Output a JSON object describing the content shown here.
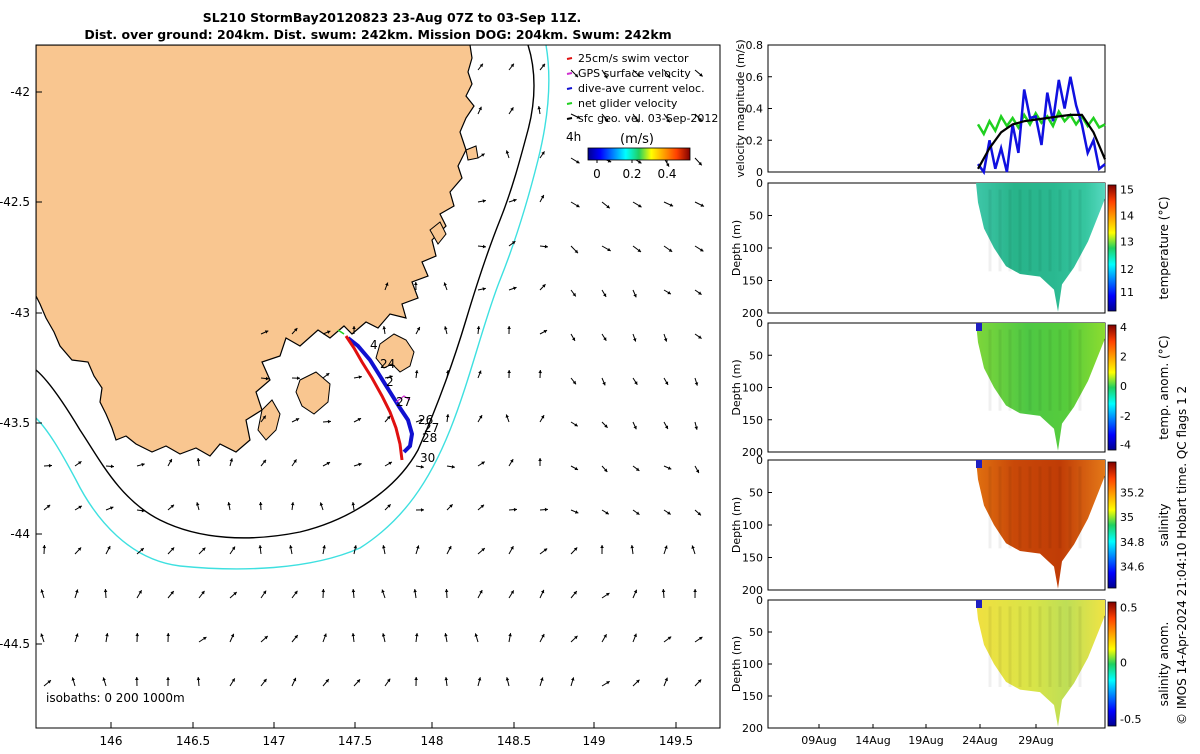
{
  "header": {
    "title_line1": "SL210 StormBay20120823 23-Aug 07Z to 03-Sep 11Z.",
    "title_line2": "Dist. over ground: 204km. Dist. swum: 242km. Mission DOG: 204km. Swum: 242km"
  },
  "map": {
    "legend": [
      {
        "label": "25cm/s swim vector",
        "color": "#e01010"
      },
      {
        "label": "GPS surface velocity",
        "color": "#d030d0"
      },
      {
        "label": "dive-ave current veloc.",
        "color": "#1010d0"
      },
      {
        "label": "net glider velocity",
        "color": "#20d020"
      },
      {
        "label": "sfc geo. vel. 03-Sep-2012",
        "color": "#000000"
      }
    ],
    "colorbar_unit": "(m/s)",
    "colorbar_ticks": [
      "0",
      "0.2",
      "0.4"
    ],
    "hour_label": "4h",
    "isobaths_label": "isobaths: 0   200  1000m",
    "xticks": [
      "146",
      "146.5",
      "147",
      "147.5",
      "148",
      "148.5",
      "149",
      "149.5"
    ],
    "yticks": [
      "-42",
      "-42.5",
      "-43",
      "-43.5",
      "-44",
      "-44.5"
    ],
    "track_day_labels": [
      "4",
      "24",
      "2",
      "27",
      "26",
      "27",
      "28",
      "30"
    ]
  },
  "panels": {
    "time_ticks": [
      "09Aug",
      "14Aug",
      "19Aug",
      "24Aug",
      "29Aug"
    ],
    "depth_label": "Depth (m)",
    "depth_ticks": [
      "0",
      "50",
      "100",
      "150",
      "200"
    ],
    "velocity_label": "velocity magnitude (m/s)",
    "velocity_ticks": [
      "0",
      "0.2",
      "0.4",
      "0.6",
      "0.8"
    ],
    "temperature": {
      "label": "temperature (°C)",
      "ticks": [
        "15",
        "14",
        "13",
        "12",
        "11"
      ]
    },
    "temp_anom": {
      "label": "temp. anom. (°C)",
      "ticks": [
        "4",
        "2",
        "0",
        "-2",
        "-4"
      ]
    },
    "salinity": {
      "label": "salinity",
      "ticks": [
        "35.2",
        "35",
        "34.8",
        "34.6"
      ]
    },
    "sal_anom": {
      "label": "salinity anom.",
      "ticks": [
        "0.5",
        "0",
        "-0.5"
      ]
    },
    "footer": "© IMOS 14-Apr-2024 21:04:10 Hobart time. QC flags 1  2"
  },
  "chart_data": [
    {
      "type": "scatter",
      "title": "SL210 StormBay20120823 23-Aug 07Z to 03-Sep 11Z.",
      "xlim": [
        145.52,
        149.83
      ],
      "ylim": [
        -44.85,
        -41.8
      ],
      "grid": false,
      "legend_placement": "top-right",
      "series": [
        {
          "name": "dive-ave current veloc.",
          "x": [
            147.45,
            147.55,
            147.62,
            147.7,
            147.76,
            147.8,
            147.83,
            147.86,
            147.84,
            147.8
          ],
          "y": [
            -43.1,
            -43.16,
            -43.23,
            -43.33,
            -43.4,
            -43.46,
            -43.52,
            -43.56,
            -43.61,
            -43.64
          ]
        },
        {
          "name": "25cm/s swim vector",
          "x": [
            147.44,
            147.54,
            147.62,
            147.69,
            147.74,
            147.78,
            147.8,
            147.82,
            147.8
          ],
          "y": [
            -43.11,
            -43.17,
            -43.26,
            -43.36,
            -43.45,
            -43.52,
            -43.58,
            -43.63,
            -43.68
          ]
        }
      ]
    },
    {
      "type": "line",
      "ylabel": "velocity magnitude (m/s)",
      "ylim": [
        0,
        0.8
      ],
      "x": [
        "23Aug",
        "24Aug",
        "25Aug",
        "26Aug",
        "27Aug",
        "28Aug",
        "29Aug",
        "30Aug",
        "31Aug",
        "01Sep",
        "02Sep",
        "03Sep"
      ],
      "series": [
        {
          "name": "net glider velocity",
          "values": [
            0.3,
            0.32,
            0.35,
            0.34,
            0.36,
            0.37,
            0.35,
            0.38,
            0.36,
            0.35,
            0.34,
            0.3
          ]
        },
        {
          "name": "dive-ave current veloc.",
          "values": [
            0.05,
            0.2,
            0.15,
            0.3,
            0.52,
            0.35,
            0.5,
            0.58,
            0.6,
            0.3,
            0.2,
            0.05
          ]
        },
        {
          "name": "sfc geo. vel.",
          "values": [
            0.02,
            0.15,
            0.25,
            0.3,
            0.32,
            0.33,
            0.34,
            0.35,
            0.36,
            0.36,
            0.25,
            0.08
          ]
        }
      ]
    },
    {
      "type": "heatmap",
      "ylabel": "Depth (m)",
      "colorbar": "temperature (°C)",
      "clim": [
        10.3,
        15.3
      ],
      "ylim": [
        200,
        0
      ],
      "x": [
        "24Aug",
        "27Aug",
        "30Aug",
        "03Sep"
      ],
      "y": [
        0,
        50,
        100,
        150
      ],
      "values": [
        [
          13.0,
          12.4,
          12.4,
          13.5
        ],
        [
          12.6,
          12.3,
          12.2,
          12.6
        ],
        [
          12.4,
          12.1,
          12.0,
          12.3
        ],
        [
          12.2,
          12.0,
          12.0,
          12.2
        ]
      ]
    },
    {
      "type": "heatmap",
      "ylabel": "Depth (m)",
      "colorbar": "temp. anom. (°C)",
      "clim": [
        -4,
        4
      ],
      "ylim": [
        200,
        0
      ],
      "x": [
        "24Aug",
        "27Aug",
        "30Aug",
        "03Sep"
      ],
      "y": [
        0,
        50,
        100,
        150
      ],
      "values": [
        [
          1.2,
          0.8,
          1.0,
          1.0
        ],
        [
          0.5,
          0.3,
          0.4,
          0.5
        ],
        [
          0.3,
          0.0,
          0.2,
          0.3
        ],
        [
          0.2,
          0.1,
          0.1,
          0.2
        ]
      ]
    },
    {
      "type": "heatmap",
      "ylabel": "Depth (m)",
      "colorbar": "salinity",
      "clim": [
        34.5,
        35.35
      ],
      "ylim": [
        200,
        0
      ],
      "x": [
        "24Aug",
        "27Aug",
        "30Aug",
        "03Sep"
      ],
      "y": [
        0,
        50,
        100,
        150
      ],
      "values": [
        [
          35.15,
          35.3,
          35.3,
          35.15
        ],
        [
          35.2,
          35.3,
          35.3,
          35.2
        ],
        [
          35.18,
          35.28,
          35.28,
          35.2
        ],
        [
          35.15,
          35.25,
          35.25,
          35.18
        ]
      ]
    },
    {
      "type": "heatmap",
      "ylabel": "Depth (m)",
      "colorbar": "salinity anom.",
      "clim": [
        -0.5,
        0.5
      ],
      "ylim": [
        200,
        0
      ],
      "x": [
        "24Aug",
        "27Aug",
        "30Aug",
        "03Sep"
      ],
      "y": [
        0,
        50,
        100,
        150
      ],
      "values": [
        [
          0.1,
          0.15,
          0.15,
          0.1
        ],
        [
          0.1,
          0.1,
          0.05,
          0.1
        ],
        [
          0.05,
          0.05,
          0.0,
          0.1
        ],
        [
          0.0,
          0.05,
          0.0,
          0.05
        ]
      ]
    }
  ]
}
